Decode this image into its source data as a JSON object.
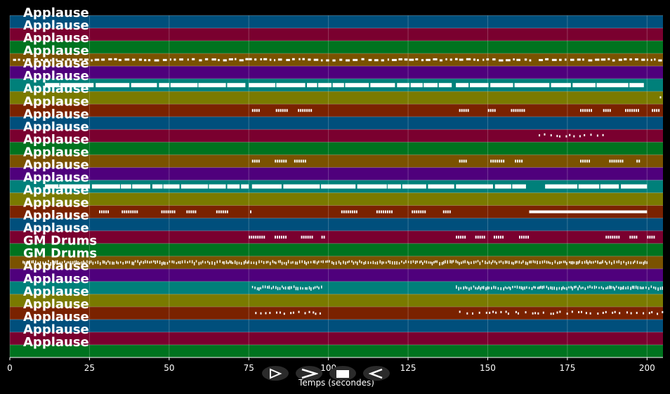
{
  "chart_data": {
    "type": "piano-roll",
    "xlabel": "Temps (secondes)",
    "xlim": [
      0,
      205
    ],
    "xticks": [
      0,
      25,
      50,
      75,
      100,
      125,
      150,
      175,
      200
    ],
    "grid": true,
    "lane_colors": [
      "#004f7c",
      "#7a002f",
      "#00731f",
      "#7a5200",
      "#4f007c",
      "#00807a",
      "#7a7a00",
      "#7a2200"
    ],
    "tracks": [
      {
        "label": "Applause",
        "notes": []
      },
      {
        "label": "Applause",
        "notes": []
      },
      {
        "label": "Applause",
        "notes": []
      },
      {
        "label": "Applause",
        "notes": [
          {
            "start": 1,
            "end": 75,
            "pattern": "dashes"
          },
          {
            "start": 75,
            "end": 164,
            "pattern": "dashes"
          },
          {
            "start": 166,
            "end": 204,
            "pattern": "dashes"
          }
        ]
      },
      {
        "label": "Applause",
        "notes": []
      },
      {
        "label": "Applause",
        "notes": [
          {
            "start": 11,
            "end": 74,
            "pattern": "bars"
          },
          {
            "start": 75,
            "end": 139,
            "pattern": "bars"
          },
          {
            "start": 140,
            "end": 199,
            "pattern": "bars"
          }
        ]
      },
      {
        "label": "Applause",
        "notes": [
          {
            "start": 204,
            "end": 205,
            "pattern": "dots"
          }
        ]
      },
      {
        "label": "Applause",
        "notes": [
          {
            "start": 76,
            "end": 98,
            "pattern": "clusters"
          },
          {
            "start": 141,
            "end": 163,
            "pattern": "clusters"
          },
          {
            "start": 179,
            "end": 205,
            "pattern": "clusters"
          }
        ]
      },
      {
        "label": "Applause",
        "notes": []
      },
      {
        "label": "Applause",
        "notes": [
          {
            "start": 166,
            "end": 186,
            "pattern": "dots"
          }
        ]
      },
      {
        "label": "Applause",
        "notes": []
      },
      {
        "label": "Applause",
        "notes": [
          {
            "start": 76,
            "end": 96,
            "pattern": "clusters"
          },
          {
            "start": 141,
            "end": 161,
            "pattern": "clusters"
          },
          {
            "start": 179,
            "end": 198,
            "pattern": "clusters"
          }
        ]
      },
      {
        "label": "Applause",
        "notes": []
      },
      {
        "label": "Applause",
        "notes": [
          {
            "start": 11,
            "end": 75,
            "pattern": "bars"
          },
          {
            "start": 76,
            "end": 162,
            "pattern": "bars"
          },
          {
            "start": 168,
            "end": 200,
            "pattern": "bars"
          }
        ]
      },
      {
        "label": "Applause",
        "notes": []
      },
      {
        "label": "Applause",
        "notes": [
          {
            "start": 28,
            "end": 76,
            "pattern": "clusters"
          },
          {
            "start": 104,
            "end": 140,
            "pattern": "clusters"
          },
          {
            "start": 163,
            "end": 200,
            "pattern": "solid"
          }
        ]
      },
      {
        "label": "Applause",
        "notes": []
      },
      {
        "label": "Applause",
        "notes": [
          {
            "start": 75,
            "end": 99,
            "pattern": "clusters"
          },
          {
            "start": 140,
            "end": 164,
            "pattern": "clusters"
          },
          {
            "start": 187,
            "end": 205,
            "pattern": "clusters"
          }
        ]
      },
      {
        "label": "GM Drums",
        "notes": []
      },
      {
        "label": "GM Drums",
        "notes": [
          {
            "start": 4,
            "end": 200,
            "pattern": "dense"
          }
        ]
      },
      {
        "label": "Applause",
        "notes": []
      },
      {
        "label": "Applause",
        "notes": [
          {
            "start": 76,
            "end": 98,
            "pattern": "dense"
          },
          {
            "start": 140,
            "end": 205,
            "pattern": "dense"
          }
        ]
      },
      {
        "label": "Applause",
        "notes": []
      },
      {
        "label": "Applause",
        "notes": [
          {
            "start": 77,
            "end": 98,
            "pattern": "dots"
          },
          {
            "start": 141,
            "end": 205,
            "pattern": "dots"
          }
        ]
      },
      {
        "label": "Applause",
        "notes": []
      },
      {
        "label": "Applause",
        "notes": []
      },
      {
        "label": "Applause",
        "notes": []
      }
    ]
  },
  "controls": [
    {
      "name": "rewind-button",
      "icon": "rewind-icon"
    },
    {
      "name": "play-button",
      "icon": "play-icon"
    },
    {
      "name": "stop-button",
      "icon": "stop-icon"
    },
    {
      "name": "back-button",
      "icon": "back-icon"
    }
  ]
}
